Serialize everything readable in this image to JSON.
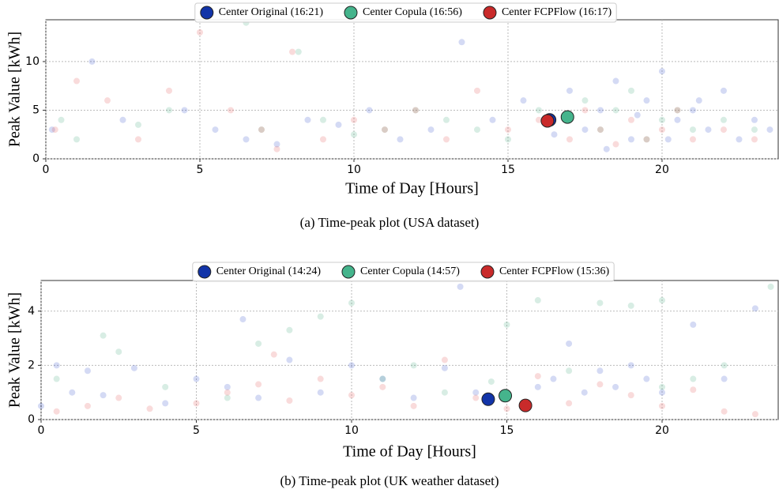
{
  "chart_data": [
    {
      "type": "scatter",
      "caption": "(a) Time-peak plot (USA dataset)",
      "xlabel": "Time of Day [Hours]",
      "ylabel": "Peak Value [kWh]",
      "xlim": [
        0,
        23.77
      ],
      "ylim": [
        0,
        14.3
      ],
      "xticks": [
        0,
        5,
        10,
        15,
        20
      ],
      "yticks": [
        0,
        5,
        10
      ],
      "grid": true,
      "legend": "top-center",
      "alpha": 0.2,
      "series": [
        {
          "color": "#2a45c8",
          "x": [
            0.2,
            1.5,
            2.5,
            4.5,
            5.5,
            6.5,
            7.5,
            8.5,
            9.5,
            10.5,
            11.5,
            12.5,
            13.5,
            14.5,
            15.5,
            16.5,
            17.0,
            17.5,
            18.0,
            18.5,
            19.0,
            19.5,
            20.0,
            20.5,
            21.0,
            21.5,
            22.0,
            22.5,
            23.0,
            23.5,
            18.2,
            19.2,
            20.2,
            21.2
          ],
          "values": [
            3,
            10,
            4,
            5,
            3,
            2,
            1.5,
            4,
            3.5,
            5,
            2,
            3,
            12,
            4,
            6,
            2.5,
            7,
            3,
            5,
            8,
            2,
            6,
            9,
            4,
            5,
            3,
            7,
            2,
            4,
            3,
            1,
            4.5,
            2,
            6
          ]
        },
        {
          "color": "#3aa77a",
          "x": [
            0.5,
            1,
            3,
            4,
            6.5,
            7,
            8.2,
            9,
            10,
            11,
            12,
            13,
            14,
            15,
            16,
            17,
            17.5,
            18,
            18.5,
            19,
            19.5,
            20,
            20.5,
            21,
            22,
            23
          ],
          "values": [
            4,
            2,
            3.5,
            5,
            14,
            3,
            11,
            4,
            2.5,
            3,
            5,
            4,
            3,
            2,
            5,
            4,
            6,
            3,
            5,
            7,
            2,
            4,
            5,
            3,
            4,
            3
          ]
        },
        {
          "color": "#e0494a",
          "x": [
            0.3,
            1,
            2,
            3,
            4,
            5,
            6,
            7,
            7.5,
            8,
            9,
            10,
            11,
            12,
            13,
            14,
            15,
            16,
            17,
            17.5,
            18,
            18.5,
            19,
            19.5,
            20,
            20.5,
            21,
            22,
            23
          ],
          "values": [
            3,
            8,
            6,
            2,
            7,
            13,
            5,
            3,
            1,
            11,
            2,
            4,
            3,
            5,
            2,
            7,
            3,
            4,
            2,
            5,
            3,
            1.5,
            4,
            2,
            3,
            5,
            2,
            3,
            2
          ]
        },
        {
          "name": "Center Original (16:21)",
          "color": "#1234a8",
          "x": [
            16.35
          ],
          "values": [
            4.0
          ]
        },
        {
          "name": "Center Copula (16:56)",
          "color": "#45b48c",
          "x": [
            16.93
          ],
          "values": [
            4.3
          ]
        },
        {
          "name": "Center FCPFlow (16:17)",
          "color": "#c92a2a",
          "x": [
            16.28
          ],
          "values": [
            3.9
          ]
        }
      ]
    },
    {
      "type": "scatter",
      "caption": "(b) Time-peak plot (UK weather dataset)",
      "xlabel": "Time of Day [Hours]",
      "ylabel": "Peak Value [kWh]",
      "xlim": [
        0,
        23.74
      ],
      "ylim": [
        0,
        5.13
      ],
      "xticks": [
        0,
        5,
        10,
        15,
        20
      ],
      "yticks": [
        0,
        2,
        4
      ],
      "grid": true,
      "legend": "top-center",
      "alpha": 0.2,
      "series": [
        {
          "color": "#2a45c8",
          "x": [
            0,
            0.5,
            1,
            1.5,
            2,
            3,
            4,
            5,
            6,
            6.5,
            7,
            8,
            9,
            10,
            11,
            12,
            13,
            13.5,
            14,
            16,
            16.5,
            17,
            17.5,
            18,
            18.5,
            19,
            19.5,
            20,
            21,
            22,
            23
          ],
          "values": [
            0.5,
            2,
            1,
            1.8,
            0.9,
            1.9,
            0.6,
            1.5,
            1.2,
            3.7,
            0.8,
            2.2,
            1,
            2,
            1.5,
            0.8,
            1.9,
            4.9,
            1,
            1.2,
            1.5,
            2.8,
            1,
            1.8,
            1.2,
            2,
            1.5,
            1,
            3.5,
            1.5,
            4.1
          ]
        },
        {
          "color": "#3aa77a",
          "x": [
            0.5,
            2,
            2.5,
            4,
            6,
            7,
            8,
            9,
            10,
            11,
            12,
            13,
            14.5,
            15,
            16,
            17,
            18,
            19,
            20,
            20,
            21,
            22,
            23.5
          ],
          "values": [
            1.5,
            3.1,
            2.5,
            1.2,
            0.8,
            2.8,
            3.3,
            3.8,
            4.3,
            1.5,
            2,
            1,
            1.4,
            3.5,
            4.4,
            1.8,
            4.3,
            4.2,
            1.2,
            4.4,
            1.5,
            2,
            4.9
          ]
        },
        {
          "color": "#e0494a",
          "x": [
            0.5,
            1.5,
            2.5,
            3.5,
            5,
            6,
            7,
            7.5,
            8,
            9,
            10,
            11,
            12,
            13,
            14,
            15,
            16,
            17,
            18,
            19,
            20,
            21,
            22,
            23
          ],
          "values": [
            0.3,
            0.5,
            0.8,
            0.4,
            0.6,
            1,
            1.3,
            2.4,
            0.7,
            1.5,
            0.9,
            1.2,
            0.5,
            2.2,
            0.8,
            0.4,
            1.6,
            0.6,
            1.3,
            0.9,
            0.5,
            1.1,
            0.3,
            0.2
          ]
        },
        {
          "name": "Center Original (14:24)",
          "color": "#1234a8",
          "x": [
            14.4
          ],
          "values": [
            0.75
          ]
        },
        {
          "name": "Center Copula (14:57)",
          "color": "#45b48c",
          "x": [
            14.95
          ],
          "values": [
            0.88
          ]
        },
        {
          "name": "Center FCPFlow (15:36)",
          "color": "#c92a2a",
          "x": [
            15.6
          ],
          "values": [
            0.52
          ]
        }
      ]
    }
  ]
}
